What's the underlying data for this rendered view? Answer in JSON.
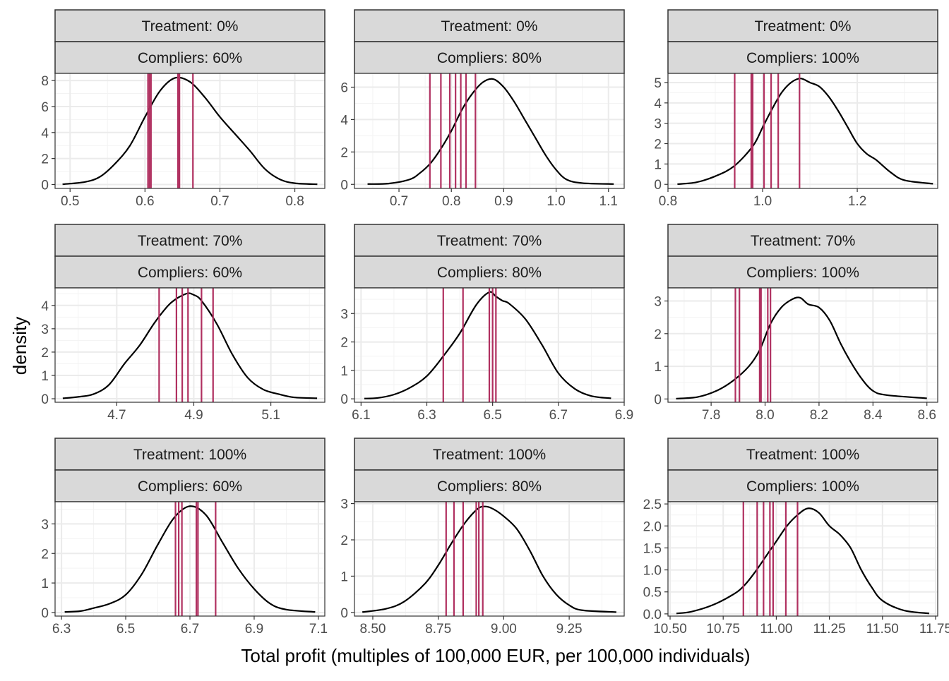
{
  "figure": {
    "xlabel": "Total profit (multiples of 100,000 EUR, per 100,000 individuals)",
    "ylabel": "density",
    "vline_color": "#b03060",
    "line_color": "#000000",
    "strip_fill": "#d9d9d9"
  },
  "chart_data": [
    {
      "type": "line",
      "strip": [
        "Treatment: 0%",
        "Compliers: 60%"
      ],
      "xlim": [
        0.48,
        0.84
      ],
      "ylim": [
        -0.3,
        8.55
      ],
      "xticks": [
        0.5,
        0.6,
        0.7,
        0.8
      ],
      "xtick_labels": [
        "0.5",
        "0.6",
        "0.7",
        "0.8"
      ],
      "yticks": [
        0,
        2,
        4,
        6,
        8
      ],
      "ytick_labels": [
        "0",
        "2",
        "4",
        "6",
        "8"
      ],
      "vlines": [
        0.604,
        0.606,
        0.608,
        0.644,
        0.646,
        0.664
      ],
      "density": {
        "x": [
          0.49,
          0.52,
          0.54,
          0.56,
          0.58,
          0.6,
          0.62,
          0.64,
          0.66,
          0.68,
          0.7,
          0.72,
          0.74,
          0.76,
          0.78,
          0.8,
          0.83
        ],
        "y": [
          0.02,
          0.2,
          0.6,
          1.6,
          3.0,
          5.2,
          7.2,
          8.2,
          7.9,
          6.7,
          5.2,
          3.9,
          2.6,
          1.2,
          0.4,
          0.1,
          0.02
        ]
      }
    },
    {
      "type": "line",
      "strip": [
        "Treatment: 0%",
        "Compliers: 80%"
      ],
      "xlim": [
        0.615,
        1.13
      ],
      "ylim": [
        -0.25,
        6.85
      ],
      "xticks": [
        0.7,
        0.8,
        0.9,
        1.0,
        1.1
      ],
      "xtick_labels": [
        "0.7",
        "0.8",
        "0.9",
        "1.0",
        "1.1"
      ],
      "yticks": [
        0,
        2,
        4,
        6
      ],
      "ytick_labels": [
        "0",
        "2",
        "4",
        "6"
      ],
      "vlines": [
        0.759,
        0.78,
        0.797,
        0.808,
        0.818,
        0.828,
        0.846
      ],
      "density": {
        "x": [
          0.64,
          0.68,
          0.72,
          0.74,
          0.76,
          0.78,
          0.8,
          0.82,
          0.84,
          0.86,
          0.88,
          0.9,
          0.92,
          0.94,
          0.96,
          0.98,
          1.0,
          1.02,
          1.05,
          1.11
        ],
        "y": [
          0.02,
          0.05,
          0.3,
          0.7,
          1.3,
          2.2,
          3.3,
          4.6,
          5.6,
          6.3,
          6.5,
          6.0,
          5.1,
          4.0,
          2.9,
          1.8,
          0.9,
          0.3,
          0.08,
          0.02
        ]
      }
    },
    {
      "type": "line",
      "strip": [
        "Treatment: 0%",
        "Compliers: 100%"
      ],
      "xlim": [
        0.8,
        1.37
      ],
      "ylim": [
        -0.2,
        5.45
      ],
      "xticks": [
        0.8,
        1.0,
        1.2
      ],
      "xtick_labels": [
        "0.8",
        "1.0",
        "1.2"
      ],
      "yticks": [
        0,
        1,
        2,
        3,
        4,
        5
      ],
      "ytick_labels": [
        "0",
        "1",
        "2",
        "3",
        "4",
        "5"
      ],
      "vlines": [
        0.941,
        0.976,
        0.979,
        1.003,
        1.018,
        1.033,
        1.078
      ],
      "density": {
        "x": [
          0.82,
          0.86,
          0.9,
          0.94,
          0.98,
          1.0,
          1.02,
          1.04,
          1.06,
          1.08,
          1.1,
          1.12,
          1.14,
          1.16,
          1.18,
          1.2,
          1.22,
          1.24,
          1.27,
          1.3,
          1.36
        ],
        "y": [
          0.01,
          0.1,
          0.4,
          0.9,
          1.9,
          2.8,
          3.7,
          4.5,
          5.0,
          5.2,
          5.0,
          4.8,
          4.3,
          3.6,
          2.8,
          2.0,
          1.5,
          1.2,
          0.6,
          0.2,
          0.03
        ]
      }
    },
    {
      "type": "line",
      "strip": [
        "Treatment: 70%",
        "Compliers: 60%"
      ],
      "xlim": [
        4.54,
        5.24
      ],
      "ylim": [
        -0.15,
        4.75
      ],
      "xticks": [
        4.7,
        4.9,
        5.1
      ],
      "xtick_labels": [
        "4.7",
        "4.9",
        "5.1"
      ],
      "yticks": [
        0,
        1,
        2,
        3,
        4
      ],
      "ytick_labels": [
        "0",
        "1",
        "2",
        "3",
        "4"
      ],
      "vlines": [
        4.81,
        4.855,
        4.87,
        4.885,
        4.92,
        4.95
      ],
      "density": {
        "x": [
          4.56,
          4.6,
          4.64,
          4.68,
          4.72,
          4.76,
          4.8,
          4.84,
          4.88,
          4.9,
          4.92,
          4.96,
          5.0,
          5.04,
          5.08,
          5.12,
          5.16,
          5.22
        ],
        "y": [
          0.02,
          0.08,
          0.2,
          0.6,
          1.5,
          2.3,
          3.3,
          4.1,
          4.5,
          4.45,
          4.2,
          3.2,
          1.9,
          0.9,
          0.4,
          0.2,
          0.06,
          0.02
        ]
      }
    },
    {
      "type": "line",
      "strip": [
        "Treatment: 70%",
        "Compliers: 80%"
      ],
      "xlim": [
        6.08,
        6.9
      ],
      "ylim": [
        -0.12,
        3.9
      ],
      "xticks": [
        6.1,
        6.3,
        6.5,
        6.7,
        6.9
      ],
      "xtick_labels": [
        "6.1",
        "6.3",
        "6.5",
        "6.7",
        "6.9"
      ],
      "yticks": [
        0,
        1,
        2,
        3
      ],
      "ytick_labels": [
        "0",
        "1",
        "2",
        "3"
      ],
      "vlines": [
        6.35,
        6.41,
        6.49,
        6.5,
        6.51
      ],
      "density": {
        "x": [
          6.11,
          6.15,
          6.2,
          6.25,
          6.3,
          6.35,
          6.4,
          6.45,
          6.49,
          6.51,
          6.53,
          6.55,
          6.6,
          6.65,
          6.7,
          6.75,
          6.8,
          6.86
        ],
        "y": [
          0.01,
          0.03,
          0.15,
          0.4,
          0.8,
          1.5,
          2.3,
          3.3,
          3.75,
          3.6,
          3.45,
          3.35,
          2.8,
          1.9,
          0.9,
          0.35,
          0.1,
          0.02
        ]
      }
    },
    {
      "type": "line",
      "strip": [
        "Treatment: 70%",
        "Compliers: 100%"
      ],
      "xlim": [
        7.64,
        8.64
      ],
      "ylim": [
        -0.1,
        3.4
      ],
      "xticks": [
        7.8,
        8.0,
        8.2,
        8.4,
        8.6
      ],
      "xtick_labels": [
        "7.8",
        "8.0",
        "8.2",
        "8.4",
        "8.6"
      ],
      "yticks": [
        0,
        1,
        2,
        3
      ],
      "ytick_labels": [
        "0",
        "1",
        "2",
        "3"
      ],
      "vlines": [
        7.89,
        7.905,
        7.98,
        7.985,
        8.01,
        8.02
      ],
      "density": {
        "x": [
          7.67,
          7.75,
          7.82,
          7.88,
          7.94,
          7.98,
          8.02,
          8.06,
          8.1,
          8.13,
          8.16,
          8.2,
          8.24,
          8.28,
          8.32,
          8.36,
          8.4,
          8.45,
          8.6
        ],
        "y": [
          0.01,
          0.06,
          0.25,
          0.55,
          1.0,
          1.5,
          2.3,
          2.8,
          3.05,
          3.1,
          2.9,
          2.8,
          2.4,
          1.7,
          1.1,
          0.6,
          0.25,
          0.12,
          0.02
        ]
      }
    },
    {
      "type": "line",
      "strip": [
        "Treatment: 100%",
        "Compliers: 60%"
      ],
      "xlim": [
        6.28,
        7.12
      ],
      "ylim": [
        -0.12,
        3.75
      ],
      "xticks": [
        6.3,
        6.5,
        6.7,
        6.9,
        7.1
      ],
      "xtick_labels": [
        "6.3",
        "6.5",
        "6.7",
        "6.9",
        "7.1"
      ],
      "yticks": [
        0,
        1,
        2,
        3
      ],
      "ytick_labels": [
        "0",
        "1",
        "2",
        "3"
      ],
      "vlines": [
        6.655,
        6.665,
        6.675,
        6.72,
        6.725,
        6.78
      ],
      "density": {
        "x": [
          6.31,
          6.36,
          6.4,
          6.45,
          6.5,
          6.55,
          6.6,
          6.65,
          6.7,
          6.75,
          6.8,
          6.85,
          6.9,
          6.95,
          7.0,
          7.09
        ],
        "y": [
          0.02,
          0.05,
          0.15,
          0.3,
          0.6,
          1.3,
          2.3,
          3.2,
          3.6,
          3.3,
          2.4,
          1.5,
          0.8,
          0.3,
          0.1,
          0.02
        ]
      }
    },
    {
      "type": "line",
      "strip": [
        "Treatment: 100%",
        "Compliers: 80%"
      ],
      "xlim": [
        8.43,
        9.46
      ],
      "ylim": [
        -0.1,
        3.05
      ],
      "xticks": [
        8.5,
        8.75,
        9.0,
        9.25
      ],
      "xtick_labels": [
        "8.50",
        "8.75",
        "9.00",
        "9.25"
      ],
      "yticks": [
        0,
        1,
        2,
        3
      ],
      "ytick_labels": [
        "0",
        "1",
        "2",
        "3"
      ],
      "vlines": [
        8.78,
        8.81,
        8.845,
        8.895,
        8.905,
        8.92
      ],
      "density": {
        "x": [
          8.46,
          8.55,
          8.62,
          8.7,
          8.75,
          8.8,
          8.85,
          8.9,
          8.93,
          8.96,
          9.0,
          9.05,
          9.1,
          9.15,
          9.2,
          9.25,
          9.3,
          9.43
        ],
        "y": [
          0.01,
          0.1,
          0.3,
          0.8,
          1.3,
          1.9,
          2.45,
          2.85,
          2.92,
          2.85,
          2.65,
          2.3,
          1.7,
          1.0,
          0.5,
          0.2,
          0.06,
          0.01
        ]
      }
    },
    {
      "type": "line",
      "strip": [
        "Treatment: 100%",
        "Compliers: 100%"
      ],
      "xlim": [
        10.49,
        11.76
      ],
      "ylim": [
        -0.05,
        2.55
      ],
      "xticks": [
        10.5,
        10.75,
        11.0,
        11.25,
        11.5,
        11.75
      ],
      "xtick_labels": [
        "10.50",
        "10.75",
        "11.00",
        "11.25",
        "11.50",
        "11.75"
      ],
      "yticks": [
        0,
        0.5,
        1,
        1.5,
        2,
        2.5
      ],
      "ytick_labels": [
        "0.0",
        "0.5",
        "1.0",
        "1.5",
        "2.0",
        "2.5"
      ],
      "vlines": [
        10.845,
        10.91,
        10.94,
        10.97,
        10.985,
        11.045,
        11.1
      ],
      "density": {
        "x": [
          10.53,
          10.6,
          10.7,
          10.8,
          10.85,
          10.9,
          10.95,
          11.0,
          11.05,
          11.1,
          11.15,
          11.2,
          11.25,
          11.3,
          11.35,
          11.4,
          11.45,
          11.5,
          11.6,
          11.72
        ],
        "y": [
          0.01,
          0.05,
          0.2,
          0.45,
          0.65,
          0.95,
          1.3,
          1.65,
          2.0,
          2.25,
          2.4,
          2.3,
          2.0,
          1.8,
          1.5,
          1.0,
          0.6,
          0.3,
          0.08,
          0.01
        ]
      }
    }
  ]
}
